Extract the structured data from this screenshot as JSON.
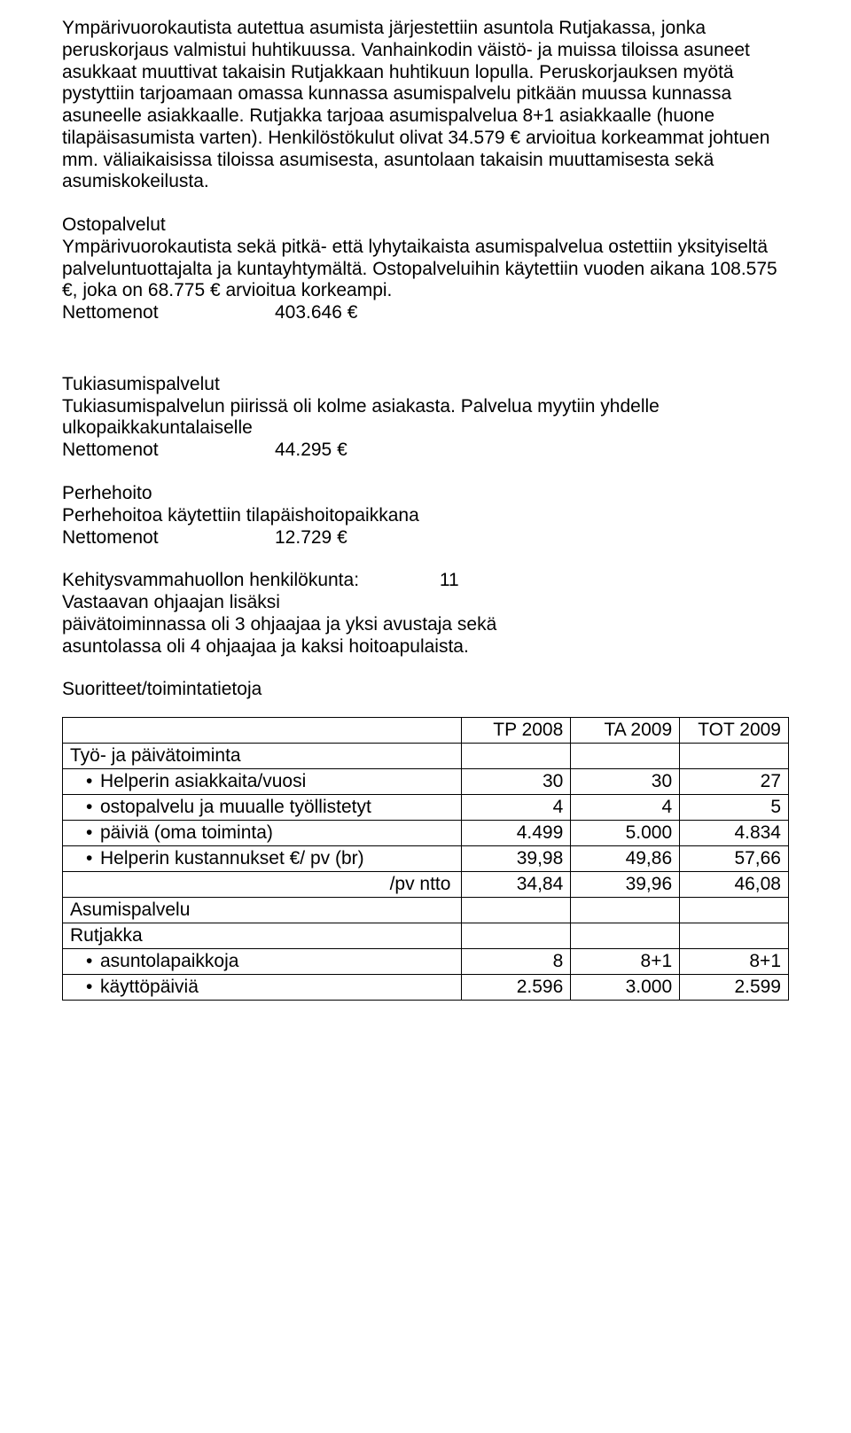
{
  "p1": "Ympärivuorokautista autettua asumista järjestettiin asuntola Rutjakassa, jonka  peruskorjaus valmistui huhtikuussa. Vanhainkodin väistö- ja muissa tiloissa asuneet asukkaat muuttivat takaisin Rutjakkaan huhtikuun lopulla. Peruskorjauksen myötä pystyttiin tarjoamaan omassa kunnassa asumispalvelu pitkään muussa kunnassa asuneelle asiakkaalle. Rutjakka tarjoaa asumispalvelua 8+1 asiakkaalle (huone tilapäisasumista varten). Henkilöstökulut olivat 34.579 € arvioitua korkeammat johtuen mm. väliaikaisissa tiloissa asumisesta, asuntolaan takaisin muuttamisesta sekä asumiskokeilusta.",
  "p2_title": "Ostopalvelut",
  "p2_body": "Ympärivuorokautista sekä pitkä- että lyhytaikaista asumispalvelua ostettiin yksityiseltä palveluntuottajalta ja kuntayhtymältä. Ostopalveluihin käytettiin vuoden aikana 108.575 €, joka on 68.775 € arvioitua korkeampi.",
  "p2_net_label": "Nettomenot",
  "p2_net_value": "403.646 €",
  "p3_title": "Tukiasumispalvelut",
  "p3_body": "Tukiasumispalvelun piirissä oli kolme asiakasta. Palvelua myytiin yhdelle ulkopaikkakuntalaiselle",
  "p3_net_label": "Nettomenot",
  "p3_net_value": "44.295 €",
  "p4_title": "Perhehoito",
  "p4_body": " Perhehoitoa käytettiin tilapäishoitopaikkana",
  "p4_net_label": "Nettomenot",
  "p4_net_value": "12.729 €",
  "p5_l1a": "Kehitysvammahuollon henkilökunta:",
  "p5_l1b": "11",
  "p5_l2": "Vastaavan ohjaajan lisäksi",
  "p5_l3": "päivätoiminnassa oli 3 ohjaajaa ja yksi avustaja sekä",
  "p5_l4": "asuntolassa oli 4 ohjaajaa ja kaksi hoitoapulaista.",
  "p6": "Suoritteet/toimintatietoja",
  "table": {
    "col_tp": "TP\n2008",
    "col_ta": "TA\n2009",
    "col_tot": "TOT\n2009",
    "rows": [
      {
        "type": "section",
        "label": "Työ- ja päivätoiminta"
      },
      {
        "type": "bullet",
        "label": "Helperin asiakkaita/vuosi",
        "tp": "30",
        "ta": "30",
        "tot": "27"
      },
      {
        "type": "bullet",
        "label": "ostopalvelu ja muualle työllistetyt",
        "tp": "4",
        "ta": "4",
        "tot": "5",
        "valign_top": true
      },
      {
        "type": "bullet",
        "label": "päiviä (oma toiminta)",
        "tp": "4.499",
        "ta": "5.000",
        "tot": "4.834"
      },
      {
        "type": "bullet",
        "label": "Helperin kustannukset €/ pv (br)",
        "tp": "39,98",
        "ta": "49,86",
        "tot": "57,66",
        "valign_top": true
      },
      {
        "type": "right",
        "label": "/pv ntto",
        "tp": "34,84",
        "ta": "39,96",
        "tot": "46,08"
      },
      {
        "type": "section",
        "label": "Asumispalvelu"
      },
      {
        "type": "section",
        "label": "Rutjakka"
      },
      {
        "type": "bullet",
        "label": "asuntolapaikkoja",
        "tp": "8",
        "ta": "8+1",
        "tot": "8+1"
      },
      {
        "type": "bullet",
        "label": "käyttöpäiviä",
        "tp": "2.596",
        "ta": "3.000",
        "tot": "2.599"
      }
    ]
  }
}
